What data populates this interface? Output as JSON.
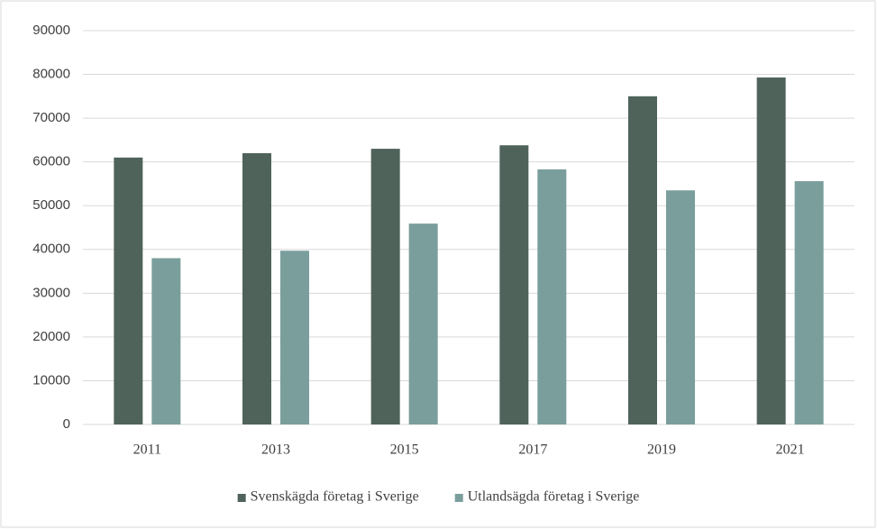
{
  "chart_data": {
    "type": "bar",
    "categories": [
      "2011",
      "2013",
      "2015",
      "2017",
      "2019",
      "2021"
    ],
    "series": [
      {
        "name": "Svenskägda företag i Sverige",
        "color": "#4f635b",
        "values": [
          61000,
          62000,
          63000,
          63800,
          75000,
          79300
        ]
      },
      {
        "name": "Utlandsägda företag i Sverige",
        "color": "#7a9e9c",
        "values": [
          38000,
          39700,
          45900,
          58300,
          53500,
          55600
        ]
      }
    ],
    "ylim": [
      0,
      90000
    ],
    "yticks": [
      0,
      10000,
      20000,
      30000,
      40000,
      50000,
      60000,
      70000,
      80000,
      90000
    ],
    "grid": true,
    "legend": "bottom"
  }
}
